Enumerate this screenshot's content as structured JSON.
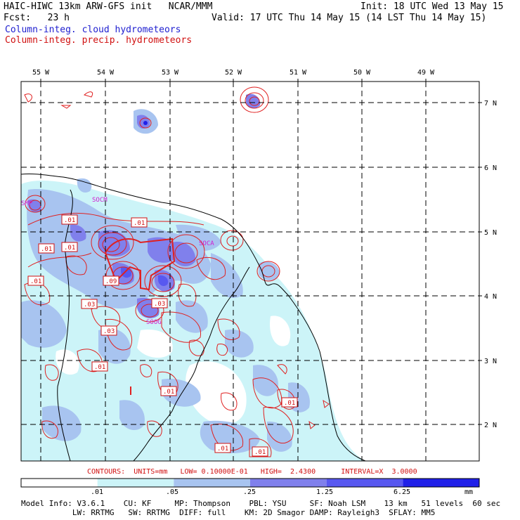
{
  "header": {
    "title": "HAIC-HIWC 13km ARW-GFS init   NCAR/MMM",
    "init": "Init: 18 UTC Wed 13 May 15",
    "fcst": "Fcst:   23 h",
    "valid": "Valid: 17 UTC Thu 14 May 15 (14 LST Thu 14 May 15)",
    "field1": "Column-integ. cloud hydrometeors",
    "field2": "Column-integ. precip. hydrometeors"
  },
  "map": {
    "lon_labels": [
      "55 W",
      "54 W",
      "53 W",
      "52 W",
      "51 W",
      "50 W",
      "49 W"
    ],
    "lat_labels": [
      "7 N",
      "6 N",
      "5 N",
      "4 N",
      "3 N",
      "2 N"
    ],
    "station_labels": [
      "SMP",
      "SOCM",
      "SOCA",
      "SOOG"
    ],
    "contour_labels": [
      ".01",
      ".01",
      ".01",
      ".01",
      ".01",
      ".09",
      ".03",
      ".03",
      ".03",
      ".01",
      ".01",
      ".01",
      ".01",
      ".01"
    ]
  },
  "contours_line": "CONTOURS:  UNITS=mm   LOW= 0.10000E-01   HIGH=  2.4300      INTERVAL=X  3.0000",
  "legend": {
    "ticks": [
      ".01",
      ".05",
      ".25",
      "1.25",
      "6.25"
    ],
    "units": "mm",
    "colors": [
      "#ffffff",
      "#ccf4f8",
      "#a8c4f0",
      "#8080ec",
      "#5858f0",
      "#2020e8"
    ]
  },
  "footer": {
    "line1": "Model Info: V3.6.1    CU: KF     MP: Thompson    PBL: YSU     SF: Noah LSM    13 km   51 levels  60 sec",
    "line2": "           LW: RRTMG   SW: RRTMG  DIFF: full    KM: 2D Smagor DAMP: Rayleigh3  SFLAY: MM5"
  }
}
